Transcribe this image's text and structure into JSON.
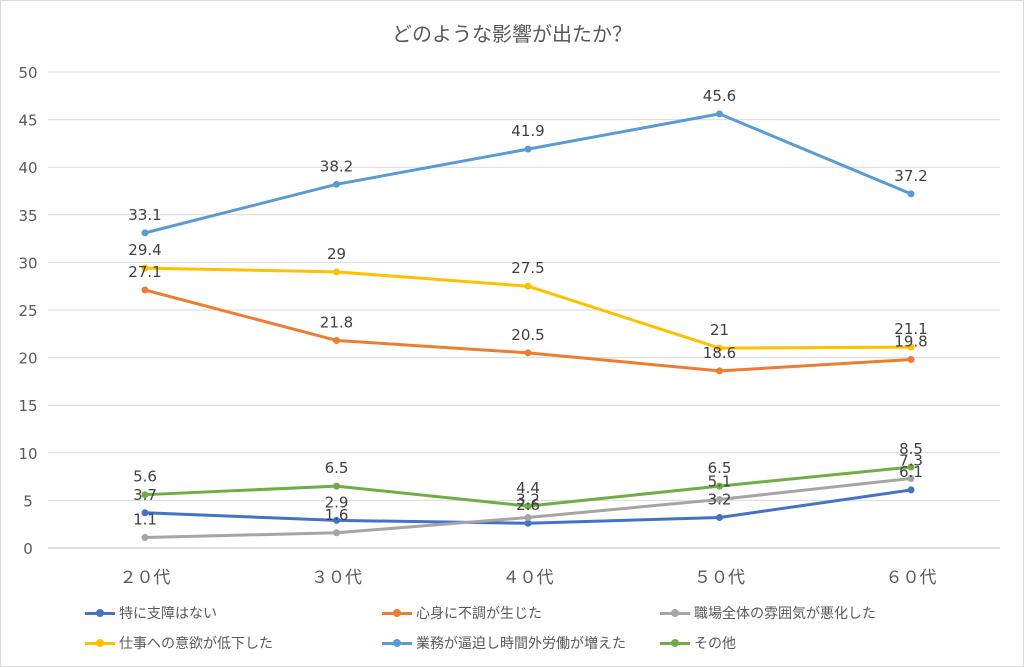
{
  "chart_data": {
    "type": "line",
    "title": "どのような影響が出たか？",
    "categories": [
      "２０代",
      "３０代",
      "４０代",
      "５０代",
      "６０代"
    ],
    "ylim": [
      0,
      50
    ],
    "ytick_labels": [
      "0",
      "5",
      "10",
      "15",
      "20",
      "25",
      "30",
      "35",
      "40",
      "45",
      "50"
    ],
    "grid": true,
    "legend_position": "bottom",
    "series": [
      {
        "name": "特に支障はない",
        "color": "#4472C4",
        "values": [
          3.7,
          2.9,
          2.6,
          3.2,
          6.1
        ]
      },
      {
        "name": "心身に不調が生じた",
        "color": "#ED7D31",
        "values": [
          27.1,
          21.8,
          20.5,
          18.6,
          19.8
        ]
      },
      {
        "name": "職場全体の雰囲気が悪化した",
        "color": "#A5A5A5",
        "values": [
          1.1,
          1.6,
          3.2,
          5.1,
          7.3
        ]
      },
      {
        "name": "仕事への意欲が低下した",
        "color": "#FFC000",
        "values": [
          29.4,
          29,
          27.5,
          21,
          21.1
        ]
      },
      {
        "name": "業務が逼迫し時間外労働が増えた",
        "color": "#5B9BD5",
        "values": [
          33.1,
          38.2,
          41.9,
          45.6,
          37.2
        ]
      },
      {
        "name": "その他",
        "color": "#70AD47",
        "values": [
          5.6,
          6.5,
          4.4,
          6.5,
          8.5
        ]
      }
    ]
  }
}
